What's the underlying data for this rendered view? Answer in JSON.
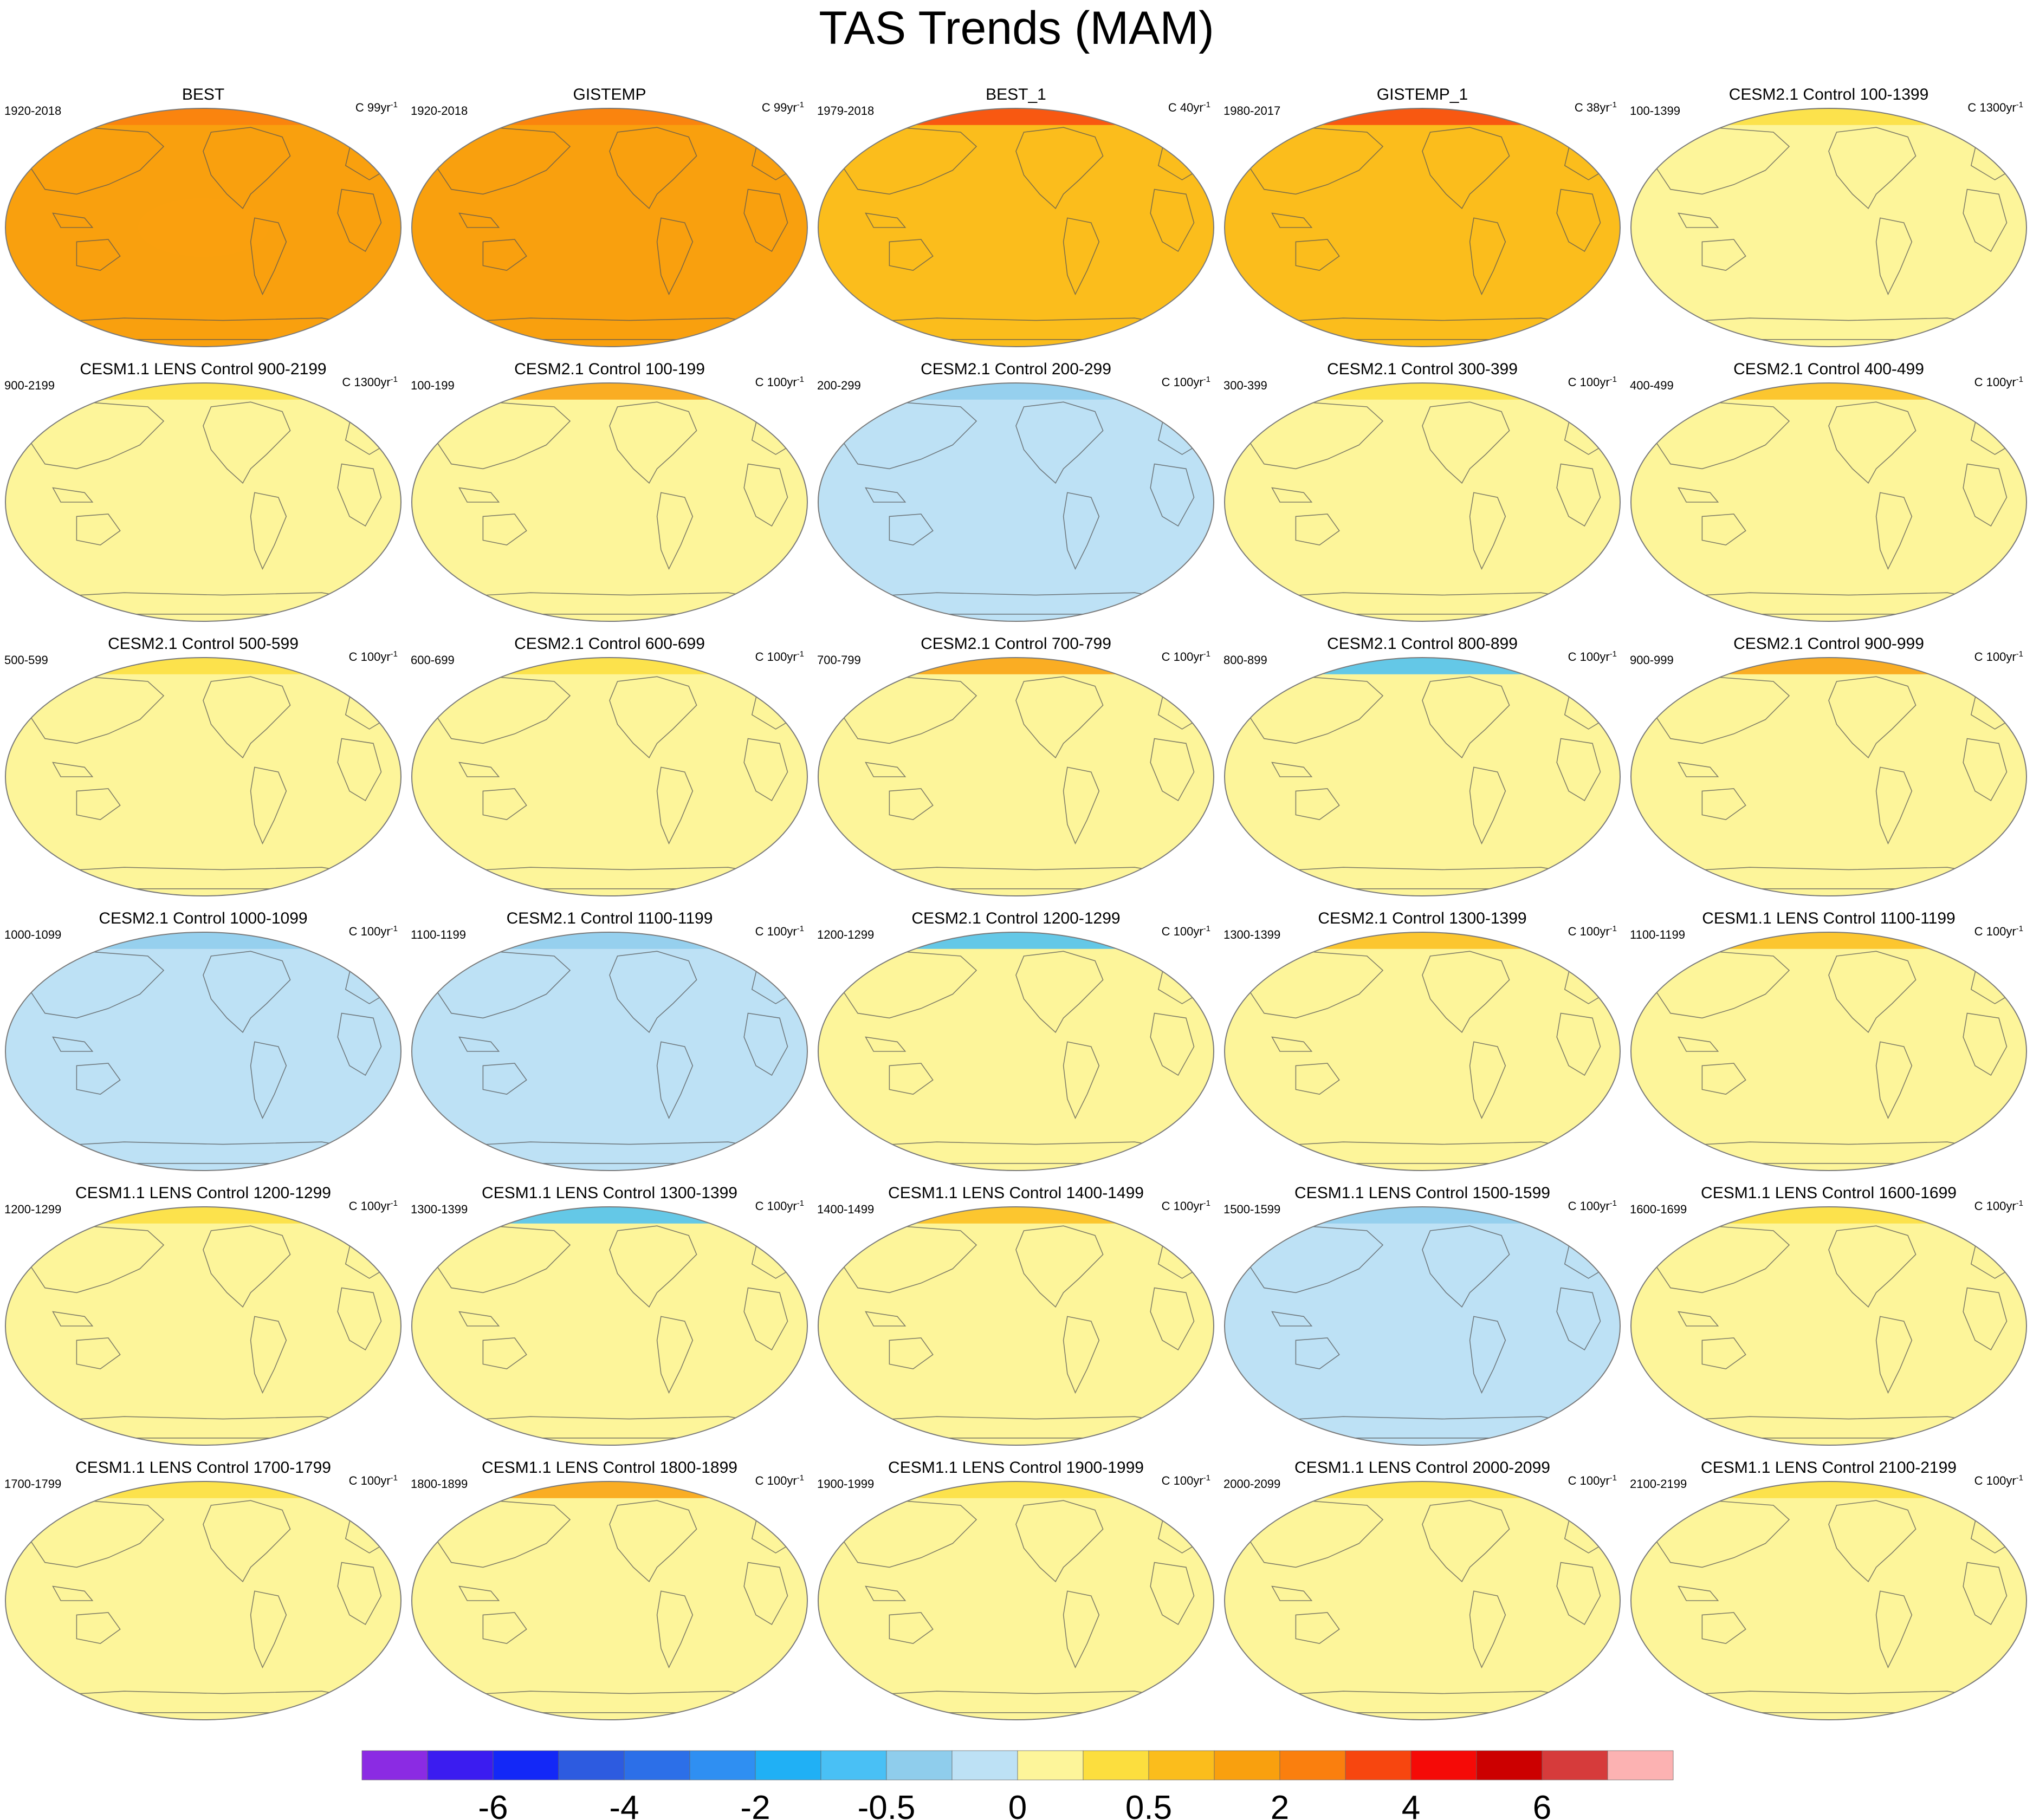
{
  "title": "TAS Trends (MAM)",
  "colors": {
    "levels": [
      "#8b2be3",
      "#3b1cf0",
      "#1328f7",
      "#2d5be0",
      "#2c6fe8",
      "#2f8ff2",
      "#20b0f5",
      "#49c0f5",
      "#8fcdec",
      "#bde1f5",
      "#fdf59a",
      "#fcde3e",
      "#fbbd1c",
      "#f9a00e",
      "#fa7f0e",
      "#f7460f",
      "#f50a07",
      "#cc0000",
      "#d63b3b",
      "#fcb2b2"
    ],
    "land_outline": "#555555",
    "frame": "#7a7a7a"
  },
  "colorbar": {
    "tick_labels": [
      "-6",
      "-4",
      "-2",
      "-0.5",
      "0",
      "0.5",
      "2",
      "4",
      "6"
    ],
    "tick_box_index": [
      2,
      4,
      6,
      8,
      10,
      12,
      14,
      16,
      18
    ]
  },
  "chart_data": {
    "type": "heatmap",
    "title": "TAS Trends (MAM)",
    "projection": "Robinson (global map panels)",
    "layout": "6 rows x 5 columns",
    "colorbar_levels_shown": [
      -6,
      -4,
      -2,
      -0.5,
      0,
      0.5,
      2,
      4,
      6
    ],
    "panels": [
      {
        "title": "BEST",
        "period": "1920-2018",
        "units": "C 99yr",
        "pattern": "warm"
      },
      {
        "title": "GISTEMP",
        "period": "1920-2018",
        "units": "C 99yr",
        "pattern": "warm"
      },
      {
        "title": "BEST_1",
        "period": "1979-2018",
        "units": "C 40yr",
        "pattern": "warm-arctic"
      },
      {
        "title": "GISTEMP_1",
        "period": "1980-2017",
        "units": "C 38yr",
        "pattern": "warm-arctic"
      },
      {
        "title": "CESM2.1 Control 100-1399",
        "period": "100-1399",
        "units": "C 1300yr",
        "pattern": "neutral"
      },
      {
        "title": "CESM1.1 LENS Control 900-2199",
        "period": "900-2199",
        "units": "C 1300yr",
        "pattern": "neutral-cool"
      },
      {
        "title": "CESM2.1 Control 100-199",
        "period": "100-199",
        "units": "C 100yr",
        "pattern": "warm-north"
      },
      {
        "title": "CESM2.1 Control 200-299",
        "period": "200-299",
        "units": "C 100yr",
        "pattern": "cool"
      },
      {
        "title": "CESM2.1 Control 300-399",
        "period": "300-399",
        "units": "C 100yr",
        "pattern": "mixed"
      },
      {
        "title": "CESM2.1 Control 400-499",
        "period": "400-499",
        "units": "C 100yr",
        "pattern": "mixed-warm"
      },
      {
        "title": "CESM2.1 Control 500-599",
        "period": "500-599",
        "units": "C 100yr",
        "pattern": "mixed"
      },
      {
        "title": "CESM2.1 Control 600-699",
        "period": "600-699",
        "units": "C 100yr",
        "pattern": "mixed"
      },
      {
        "title": "CESM2.1 Control 700-799",
        "period": "700-799",
        "units": "C 100yr",
        "pattern": "warm-north"
      },
      {
        "title": "CESM2.1 Control 800-899",
        "period": "800-899",
        "units": "C 100yr",
        "pattern": "cool-north"
      },
      {
        "title": "CESM2.1 Control 900-999",
        "period": "900-999",
        "units": "C 100yr",
        "pattern": "warm-north"
      },
      {
        "title": "CESM2.1 Control 1000-1099",
        "period": "1000-1099",
        "units": "C 100yr",
        "pattern": "cool"
      },
      {
        "title": "CESM2.1 Control 1100-1199",
        "period": "1100-1199",
        "units": "C 100yr",
        "pattern": "cool"
      },
      {
        "title": "CESM2.1 Control 1200-1299",
        "period": "1200-1299",
        "units": "C 100yr",
        "pattern": "cool-north"
      },
      {
        "title": "CESM2.1 Control 1300-1399",
        "period": "1300-1399",
        "units": "C 100yr",
        "pattern": "mixed-warm"
      },
      {
        "title": "CESM1.1 LENS Control 1100-1199",
        "period": "1100-1199",
        "units": "C 100yr",
        "pattern": "mixed-warm"
      },
      {
        "title": "CESM1.1 LENS Control 1200-1299",
        "period": "1200-1299",
        "units": "C 100yr",
        "pattern": "mixed"
      },
      {
        "title": "CESM1.1 LENS Control 1300-1399",
        "period": "1300-1399",
        "units": "C 100yr",
        "pattern": "cool-north"
      },
      {
        "title": "CESM1.1 LENS Control 1400-1499",
        "period": "1400-1499",
        "units": "C 100yr",
        "pattern": "mixed-warm"
      },
      {
        "title": "CESM1.1 LENS Control 1500-1599",
        "period": "1500-1599",
        "units": "C 100yr",
        "pattern": "cool"
      },
      {
        "title": "CESM1.1 LENS Control 1600-1699",
        "period": "1600-1699",
        "units": "C 100yr",
        "pattern": "mixed"
      },
      {
        "title": "CESM1.1 LENS Control 1700-1799",
        "period": "1700-1799",
        "units": "C 100yr",
        "pattern": "mixed"
      },
      {
        "title": "CESM1.1 LENS Control 1800-1899",
        "period": "1800-1899",
        "units": "C 100yr",
        "pattern": "warm-north"
      },
      {
        "title": "CESM1.1 LENS Control 1900-1999",
        "period": "1900-1999",
        "units": "C 100yr",
        "pattern": "mixed"
      },
      {
        "title": "CESM1.1 LENS Control 2000-2099",
        "period": "2000-2099",
        "units": "C 100yr",
        "pattern": "mixed"
      },
      {
        "title": "CESM1.1 LENS Control 2100-2199",
        "period": "2100-2199",
        "units": "C 100yr",
        "pattern": "mixed"
      }
    ]
  }
}
